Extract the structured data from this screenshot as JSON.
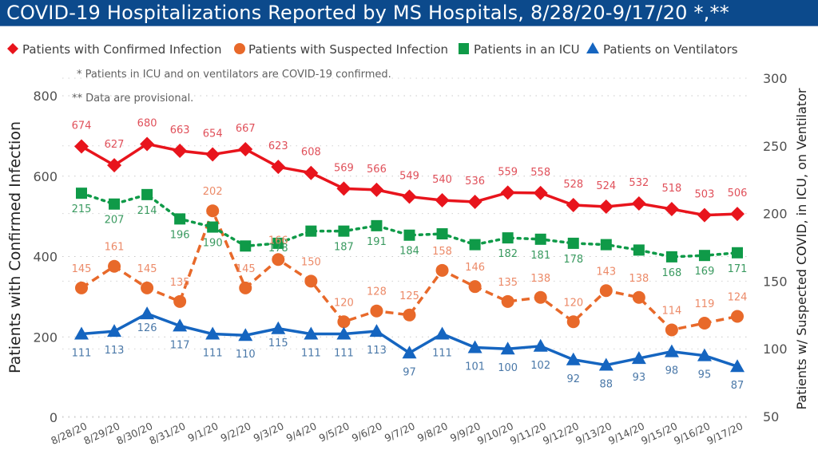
{
  "title": "COVID-19 Hospitalizations Reported by MS Hospitals, 8/28/20-9/17/20 *,**",
  "footnotes": [
    "* Patients in ICU and on ventilators are COVID-19 confirmed.",
    "** Data are provisional."
  ],
  "chart_data": {
    "type": "line",
    "title": "COVID-19 Hospitalizations Reported by MS Hospitals, 8/28/20-9/17/20 *,**",
    "categories": [
      "8/28/20",
      "8/29/20",
      "8/30/20",
      "8/31/20",
      "9/1/20",
      "9/2/20",
      "9/3/20",
      "9/4/20",
      "9/5/20",
      "9/6/20",
      "9/7/20",
      "9/8/20",
      "9/9/20",
      "9/10/20",
      "9/11/20",
      "9/12/20",
      "9/13/20",
      "9/14/20",
      "9/15/20",
      "9/16/20",
      "9/17/20"
    ],
    "xlabel": "",
    "ylabel": "Patients with Confirmed Infection",
    "ylabel_right": "Patients w/ Suspected COVID, in ICU, on Ventilator",
    "ylim": [
      0,
      800
    ],
    "yticks": [
      0,
      200,
      400,
      600,
      800
    ],
    "ylim_right": [
      50,
      300
    ],
    "yticks_right": [
      50,
      100,
      150,
      200,
      250,
      300
    ],
    "grid": true,
    "legend_position": "top",
    "series": [
      {
        "name": "Patients with Confirmed Infection",
        "axis": "left",
        "marker": "diamond",
        "line": "solid",
        "color": "#e8141c",
        "label_color": "#e0505a",
        "values": [
          674,
          627,
          680,
          663,
          654,
          667,
          623,
          608,
          569,
          566,
          549,
          540,
          536,
          559,
          558,
          528,
          524,
          532,
          518,
          503,
          506
        ]
      },
      {
        "name": "Patients with Suspected Infection",
        "axis": "right",
        "marker": "circle",
        "line": "dashed",
        "color": "#e8692a",
        "label_color": "#ec8a68",
        "values": [
          145,
          161,
          145,
          135,
          202,
          145,
          166,
          150,
          120,
          128,
          125,
          158,
          146,
          135,
          138,
          120,
          143,
          138,
          114,
          119,
          124
        ]
      },
      {
        "name": "Patients in an ICU",
        "axis": "right",
        "marker": "square",
        "line": "dotted",
        "color": "#0f9a48",
        "label_color": "#3a9a60",
        "values": [
          215,
          207,
          214,
          196,
          190,
          176,
          178,
          187,
          187,
          191,
          184,
          185,
          177,
          182,
          181,
          178,
          177,
          173,
          168,
          169,
          171
        ]
      },
      {
        "name": "Patients on Ventilators",
        "axis": "right",
        "marker": "triangle",
        "line": "solid",
        "color": "#1565c0",
        "label_color": "#4a78a8",
        "values": [
          111,
          113,
          126,
          117,
          111,
          110,
          115,
          111,
          111,
          113,
          97,
          111,
          101,
          100,
          102,
          92,
          88,
          93,
          98,
          95,
          87
        ]
      }
    ],
    "data_labels": {
      "Patients with Confirmed Infection": [
        "674",
        "627",
        "680",
        "663",
        "654",
        "667",
        "623",
        "608",
        "569",
        "566",
        "549",
        "540",
        "536",
        "559",
        "558",
        "528",
        "524",
        "532",
        "518",
        "503",
        "506"
      ],
      "Patients with Suspected Infection": [
        "145",
        "161",
        "145",
        "135",
        "202",
        "145",
        "166",
        "150",
        "120",
        "128",
        "125",
        "158",
        "146",
        "135",
        "138",
        "120",
        "143",
        "138",
        "114",
        "119",
        "124"
      ],
      "Patients in an ICU": [
        "215",
        "207",
        "214",
        "196",
        "190",
        "",
        "178",
        "",
        "187",
        "191",
        "184",
        "",
        "",
        "182",
        "181",
        "178",
        "",
        "",
        "168",
        "169",
        "171"
      ],
      "Patients on Ventilators": [
        "111",
        "113",
        "126",
        "117",
        "111",
        "110",
        "115",
        "111",
        "111",
        "113",
        "97",
        "111",
        "101",
        "100",
        "102",
        "92",
        "88",
        "93",
        "98",
        "95",
        "87"
      ]
    }
  }
}
